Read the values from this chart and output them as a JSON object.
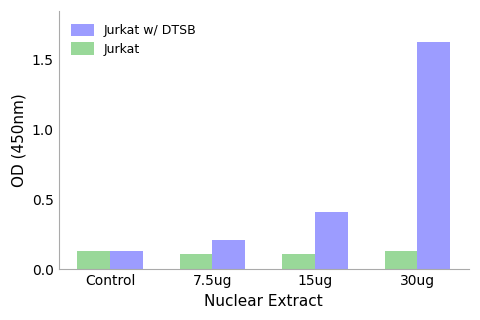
{
  "categories": [
    "Control",
    "7.5ug",
    "15ug",
    "30ug"
  ],
  "series": [
    {
      "label": "Jurkat w/ DTSB",
      "values": [
        0.13,
        0.21,
        0.41,
        1.63
      ],
      "color": "#7b7bff"
    },
    {
      "label": "Jurkat",
      "values": [
        0.13,
        0.11,
        0.11,
        0.13
      ],
      "color": "#77cc77"
    }
  ],
  "xlabel": "Nuclear Extract",
  "ylabel": "OD (450nm)",
  "ylim": [
    0,
    1.85
  ],
  "yticks": [
    0.0,
    0.5,
    1.0,
    1.5
  ],
  "bar_width": 0.32,
  "legend_loc": "upper left",
  "background_color": "#ffffff",
  "figure_bg": "#ffffff",
  "alpha": 0.75
}
